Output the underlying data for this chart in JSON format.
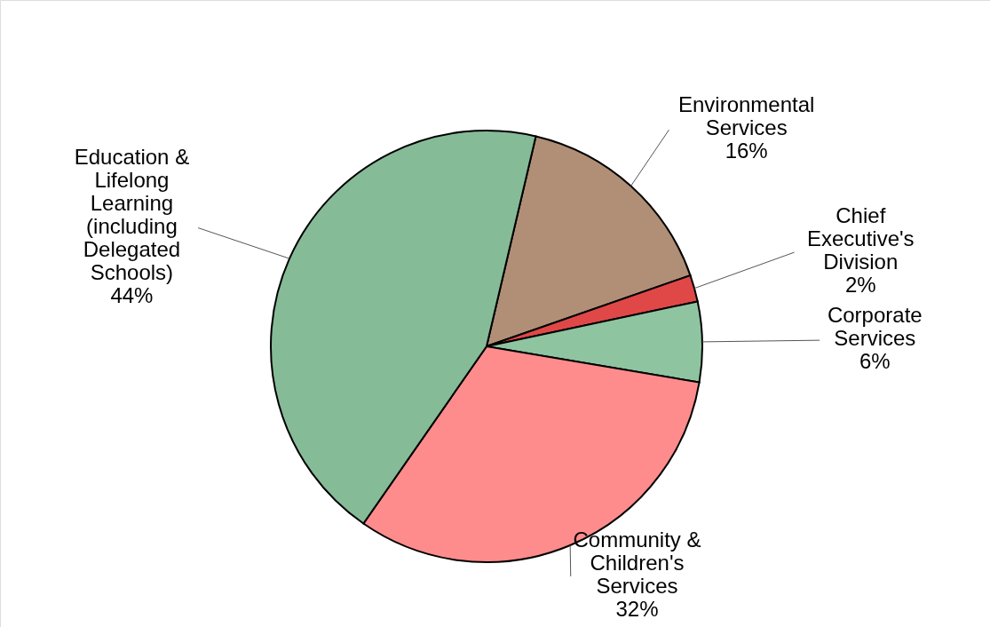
{
  "chart_data": {
    "type": "pie",
    "categories": [
      "Environmental Services",
      "Chief Executive's Division",
      "Corporate Services",
      "Community & Children's Services",
      "Education & Lifelong Learning (including Delegated Schools)"
    ],
    "values": [
      16,
      2,
      6,
      32,
      44
    ],
    "colors": [
      "#b08f76",
      "#e04848",
      "#8fc4a0",
      "#ff8c8c",
      "#86bb98"
    ],
    "value_labels": [
      "16%",
      "2%",
      "6%",
      "32%",
      "44%"
    ]
  }
}
